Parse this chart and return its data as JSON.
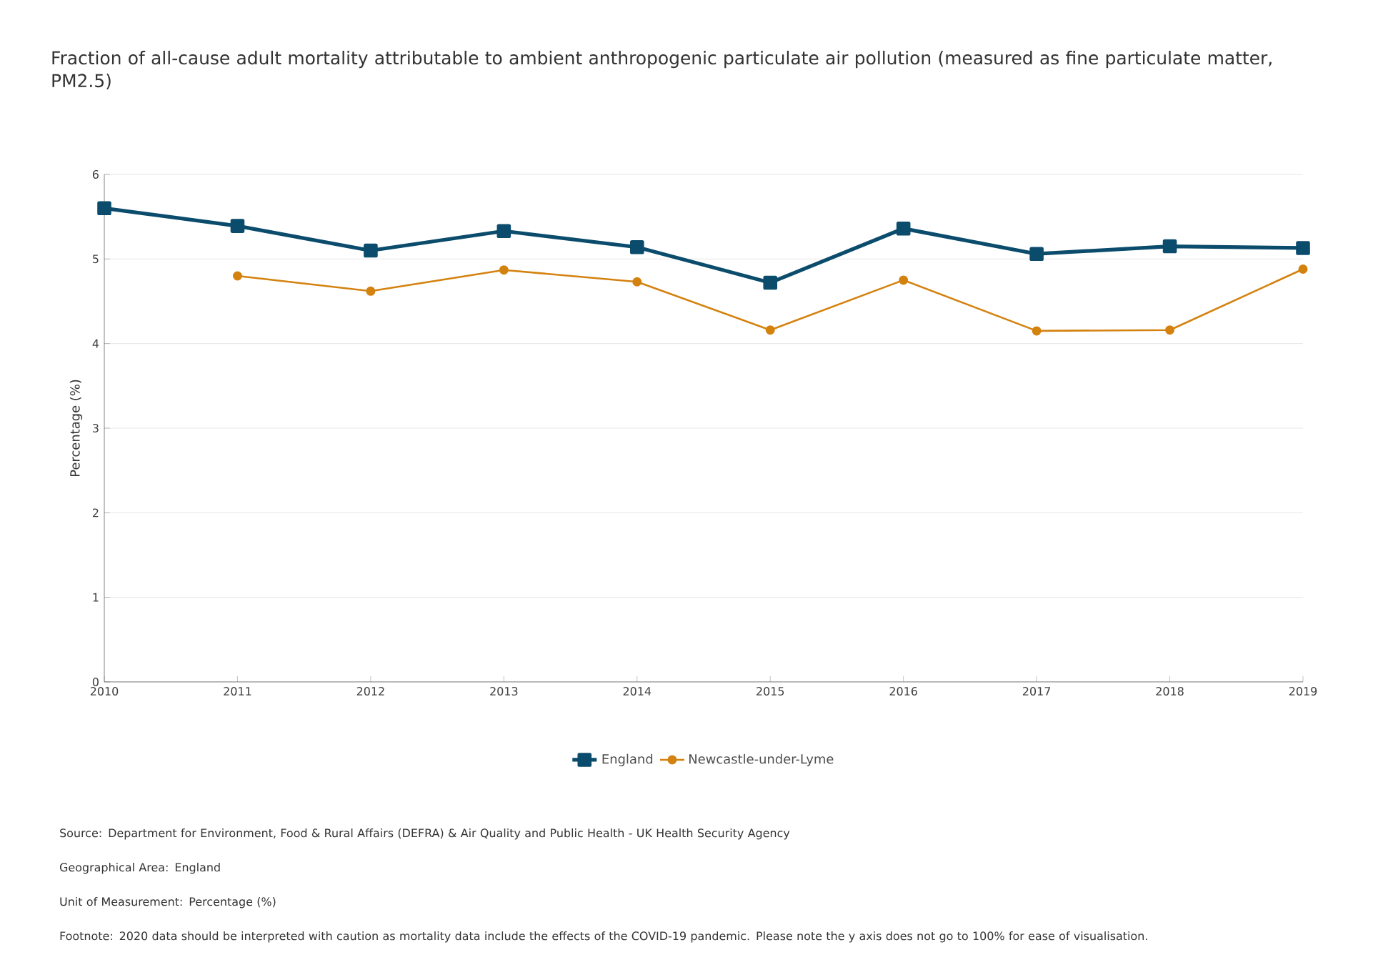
{
  "chart_data": {
    "type": "line",
    "title": "Fraction of all-cause adult mortality attributable to ambient anthropogenic particulate air pollution (measured as fine particulate matter, PM2.5)",
    "ylabel": "Percentage (%)",
    "x": [
      2010,
      2011,
      2012,
      2013,
      2014,
      2015,
      2016,
      2017,
      2018,
      2019
    ],
    "series": [
      {
        "name": "England",
        "color": "#0b4c6d",
        "marker": "square",
        "values": [
          5.6,
          5.39,
          5.1,
          5.33,
          5.14,
          4.72,
          5.36,
          5.06,
          5.15,
          5.13
        ]
      },
      {
        "name": "Newcastle-under-Lyme",
        "color": "#d4820f",
        "marker": "circle",
        "values": [
          null,
          4.8,
          4.62,
          4.87,
          4.73,
          4.16,
          4.75,
          4.15,
          4.16,
          4.88
        ]
      }
    ],
    "xlim": [
      2010,
      2019
    ],
    "xticks": [
      2010,
      2011,
      2012,
      2013,
      2014,
      2015,
      2016,
      2017,
      2018,
      2019
    ],
    "ylim": [
      0,
      6
    ],
    "yticks": [
      0,
      1,
      2,
      3,
      4,
      5,
      6
    ],
    "grid": "y",
    "legend": "bottom",
    "line_style": "solid",
    "annotations": [
      "Source:  Department for Environment, Food & Rural Affairs (DEFRA) & Air Quality and Public Health - UK Health Security Agency",
      "Geographical Area:  England",
      "Unit of Measurement:  Percentage (%)",
      "Footnote:  2020 data should be interpreted with caution as mortality data include the effects of the COVID-19 pandemic. Please note the y axis does not go to 100% for ease of visualisation."
    ]
  }
}
